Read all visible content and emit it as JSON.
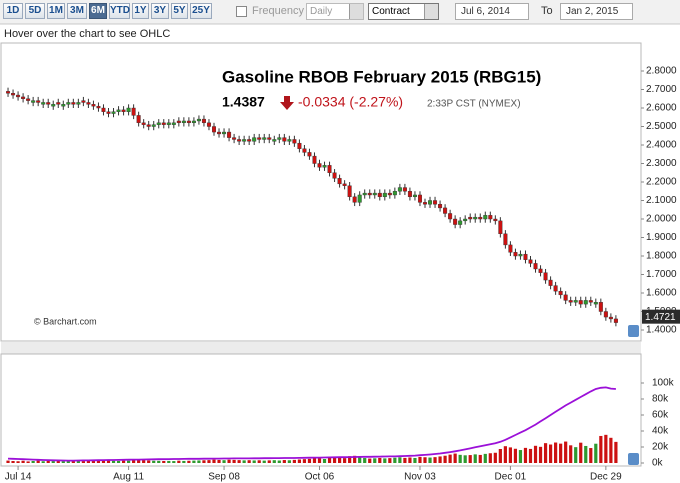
{
  "toolbar": {
    "ranges": [
      "1D",
      "5D",
      "1M",
      "3M",
      "6M",
      "YTD",
      "1Y",
      "3Y",
      "5Y",
      "25Y"
    ],
    "active": "6M",
    "frequency_label": "Frequency",
    "frequency": "Daily",
    "contract": "Contract",
    "from": "Jul 6, 2014",
    "to_label": "To",
    "to": "Jan 2, 2015"
  },
  "hint": "Hover over the chart to see OHLC",
  "chart_data": {
    "type": "candlestick",
    "title": "Gasoline RBOB February 2015 (RBG15)",
    "last": 1.4387,
    "change": "-0.0334 (-2.27%)",
    "time": "2:33P CST (NYMEX)",
    "credit": "© Barchart.com",
    "price_badge": 1.4721,
    "up_color": "#2e9a2e",
    "down_color": "#cc1111",
    "grid": false,
    "xlim": [
      -1.2,
      125.2
    ],
    "xticks": [
      {
        "value": 2,
        "label": "Jul 14"
      },
      {
        "value": 24,
        "label": "Aug 11"
      },
      {
        "value": 43,
        "label": "Sep 08"
      },
      {
        "value": 62,
        "label": "Oct 06"
      },
      {
        "value": 82,
        "label": "Nov 03"
      },
      {
        "value": 100,
        "label": "Dec 01"
      },
      {
        "value": 119,
        "label": "Dec 29"
      }
    ],
    "ylim": [
      1.346,
      2.946
    ],
    "yticks": [
      {
        "value": 2.8,
        "label": "2.8000"
      },
      {
        "value": 2.7,
        "label": "2.7000"
      },
      {
        "value": 2.6,
        "label": "2.6000"
      },
      {
        "value": 2.5,
        "label": "2.5000"
      },
      {
        "value": 2.4,
        "label": "2.4000"
      },
      {
        "value": 2.3,
        "label": "2.3000"
      },
      {
        "value": 2.2,
        "label": "2.2000"
      },
      {
        "value": 2.1,
        "label": "2.1000"
      },
      {
        "value": 2.0,
        "label": "2.0000"
      },
      {
        "value": 1.9,
        "label": "1.9000"
      },
      {
        "value": 1.8,
        "label": "1.8000"
      },
      {
        "value": 1.7,
        "label": "1.7000"
      },
      {
        "value": 1.6,
        "label": "1.6000"
      },
      {
        "value": 1.5,
        "label": "1.5000"
      },
      {
        "value": 1.4,
        "label": "1.4000"
      }
    ],
    "open": [
      2.69,
      2.68,
      2.67,
      2.66,
      2.65,
      2.63,
      2.64,
      2.62,
      2.63,
      2.61,
      2.63,
      2.61,
      2.62,
      2.63,
      2.62,
      2.64,
      2.63,
      2.62,
      2.61,
      2.6,
      2.58,
      2.57,
      2.58,
      2.59,
      2.58,
      2.6,
      2.56,
      2.52,
      2.51,
      2.5,
      2.51,
      2.52,
      2.51,
      2.51,
      2.53,
      2.52,
      2.53,
      2.52,
      2.53,
      2.54,
      2.52,
      2.5,
      2.47,
      2.46,
      2.47,
      2.44,
      2.43,
      2.42,
      2.43,
      2.42,
      2.44,
      2.43,
      2.44,
      2.42,
      2.43,
      2.44,
      2.42,
      2.43,
      2.41,
      2.38,
      2.36,
      2.34,
      2.3,
      2.28,
      2.29,
      2.25,
      2.22,
      2.19,
      2.18,
      2.12,
      2.09,
      2.13,
      2.14,
      2.13,
      2.14,
      2.12,
      2.14,
      2.13,
      2.15,
      2.17,
      2.15,
      2.12,
      2.13,
      2.09,
      2.08,
      2.1,
      2.08,
      2.06,
      2.03,
      2.0,
      1.97,
      1.99,
      2.01,
      2.0,
      2.01,
      2.0,
      2.02,
      2.0,
      1.99,
      1.92,
      1.86,
      1.82,
      1.8,
      1.81,
      1.78,
      1.76,
      1.73,
      1.71,
      1.67,
      1.64,
      1.61,
      1.59,
      1.56,
      1.55,
      1.56,
      1.54,
      1.56,
      1.54,
      1.55,
      1.5,
      1.47,
      1.46
    ],
    "high": [
      2.71,
      2.7,
      2.69,
      2.68,
      2.67,
      2.66,
      2.66,
      2.65,
      2.65,
      2.64,
      2.65,
      2.64,
      2.65,
      2.65,
      2.65,
      2.66,
      2.65,
      2.64,
      2.63,
      2.62,
      2.6,
      2.6,
      2.61,
      2.61,
      2.62,
      2.62,
      2.58,
      2.54,
      2.53,
      2.53,
      2.54,
      2.54,
      2.54,
      2.54,
      2.55,
      2.55,
      2.55,
      2.55,
      2.56,
      2.56,
      2.54,
      2.52,
      2.49,
      2.49,
      2.49,
      2.46,
      2.45,
      2.45,
      2.45,
      2.46,
      2.46,
      2.46,
      2.46,
      2.45,
      2.46,
      2.46,
      2.45,
      2.45,
      2.43,
      2.4,
      2.38,
      2.36,
      2.32,
      2.31,
      2.31,
      2.27,
      2.24,
      2.21,
      2.2,
      2.14,
      2.15,
      2.16,
      2.16,
      2.16,
      2.16,
      2.16,
      2.16,
      2.17,
      2.19,
      2.19,
      2.17,
      2.15,
      2.15,
      2.11,
      2.12,
      2.12,
      2.1,
      2.08,
      2.05,
      2.02,
      2.01,
      2.02,
      2.03,
      2.03,
      2.03,
      2.04,
      2.04,
      2.02,
      2.01,
      1.94,
      1.88,
      1.84,
      1.83,
      1.83,
      1.8,
      1.78,
      1.75,
      1.73,
      1.69,
      1.66,
      1.63,
      1.61,
      1.58,
      1.58,
      1.58,
      1.58,
      1.58,
      1.57,
      1.57,
      1.52,
      1.49,
      1.48
    ],
    "low": [
      2.66,
      2.65,
      2.64,
      2.63,
      2.62,
      2.61,
      2.61,
      2.6,
      2.6,
      2.59,
      2.6,
      2.59,
      2.6,
      2.6,
      2.6,
      2.61,
      2.6,
      2.59,
      2.58,
      2.56,
      2.55,
      2.55,
      2.56,
      2.56,
      2.56,
      2.54,
      2.5,
      2.49,
      2.48,
      2.48,
      2.49,
      2.49,
      2.49,
      2.49,
      2.5,
      2.5,
      2.5,
      2.5,
      2.51,
      2.5,
      2.48,
      2.45,
      2.44,
      2.44,
      2.42,
      2.41,
      2.4,
      2.4,
      2.4,
      2.4,
      2.41,
      2.41,
      2.41,
      2.4,
      2.41,
      2.4,
      2.4,
      2.39,
      2.36,
      2.34,
      2.32,
      2.28,
      2.26,
      2.26,
      2.23,
      2.2,
      2.17,
      2.16,
      2.1,
      2.07,
      2.07,
      2.11,
      2.11,
      2.11,
      2.1,
      2.1,
      2.11,
      2.11,
      2.13,
      2.13,
      2.1,
      2.1,
      2.07,
      2.06,
      2.06,
      2.06,
      2.04,
      2.01,
      1.98,
      1.95,
      1.95,
      1.97,
      1.98,
      1.98,
      1.98,
      1.98,
      1.98,
      1.97,
      1.9,
      1.84,
      1.8,
      1.78,
      1.78,
      1.76,
      1.74,
      1.71,
      1.69,
      1.65,
      1.62,
      1.59,
      1.57,
      1.54,
      1.53,
      1.53,
      1.52,
      1.52,
      1.53,
      1.52,
      1.48,
      1.45,
      1.44,
      1.42
    ],
    "close": [
      2.68,
      2.67,
      2.66,
      2.65,
      2.64,
      2.64,
      2.63,
      2.63,
      2.62,
      2.62,
      2.62,
      2.62,
      2.63,
      2.62,
      2.63,
      2.63,
      2.62,
      2.61,
      2.6,
      2.58,
      2.57,
      2.58,
      2.59,
      2.58,
      2.6,
      2.56,
      2.52,
      2.51,
      2.5,
      2.51,
      2.52,
      2.51,
      2.52,
      2.52,
      2.52,
      2.53,
      2.52,
      2.53,
      2.54,
      2.52,
      2.5,
      2.47,
      2.46,
      2.47,
      2.44,
      2.43,
      2.42,
      2.43,
      2.42,
      2.44,
      2.43,
      2.44,
      2.43,
      2.43,
      2.44,
      2.42,
      2.43,
      2.41,
      2.38,
      2.36,
      2.34,
      2.3,
      2.28,
      2.29,
      2.25,
      2.22,
      2.19,
      2.18,
      2.12,
      2.09,
      2.13,
      2.14,
      2.13,
      2.14,
      2.12,
      2.14,
      2.13,
      2.15,
      2.17,
      2.15,
      2.12,
      2.13,
      2.09,
      2.08,
      2.1,
      2.08,
      2.06,
      2.03,
      2.0,
      1.97,
      1.99,
      2.0,
      2.0,
      2.01,
      2.0,
      2.02,
      2.0,
      1.99,
      1.92,
      1.86,
      1.82,
      1.8,
      1.81,
      1.78,
      1.76,
      1.73,
      1.71,
      1.67,
      1.64,
      1.61,
      1.59,
      1.56,
      1.55,
      1.56,
      1.54,
      1.56,
      1.55,
      1.55,
      1.5,
      1.47,
      1.46,
      1.44
    ],
    "volume": {
      "ylim": [
        0,
        135000
      ],
      "yticks": [
        {
          "value": 100000,
          "label": "100k"
        },
        {
          "value": 80000,
          "label": "80k"
        },
        {
          "value": 60000,
          "label": "60k"
        },
        {
          "value": 40000,
          "label": "40k"
        },
        {
          "value": 20000,
          "label": "20k"
        },
        {
          "value": 0,
          "label": "0k"
        }
      ],
      "values": [
        3000,
        2500,
        2200,
        2800,
        2000,
        2500,
        3000,
        2200,
        2600,
        2400,
        2800,
        2300,
        2500,
        2100,
        2700,
        2400,
        2600,
        3100,
        3300,
        3800,
        3500,
        2800,
        2600,
        3000,
        2900,
        4200,
        4800,
        3600,
        3200,
        2800,
        2700,
        2500,
        2600,
        2400,
        2900,
        2600,
        2800,
        3000,
        3200,
        3400,
        3600,
        4200,
        3800,
        3500,
        4100,
        3900,
        3600,
        3300,
        3500,
        3200,
        3400,
        3000,
        3300,
        3500,
        3100,
        3700,
        3400,
        3900,
        4400,
        4800,
        5200,
        6200,
        5800,
        5000,
        6400,
        6800,
        7200,
        6100,
        8500,
        9000,
        7800,
        6200,
        5600,
        5900,
        6300,
        5800,
        6100,
        6600,
        7100,
        6400,
        6900,
        6300,
        7600,
        7200,
        6800,
        7300,
        8200,
        9100,
        10500,
        11800,
        10200,
        9600,
        9900,
        10800,
        10100,
        11400,
        12200,
        12800,
        17500,
        21000,
        19500,
        17800,
        16200,
        18900,
        17600,
        21500,
        20200,
        24800,
        23100,
        25600,
        24200,
        26800,
        22100,
        19800,
        25400,
        21300,
        18700,
        24100,
        33800,
        35200,
        31500,
        26400
      ]
    },
    "open_interest": {
      "color": "#9b10d8",
      "values": [
        5500,
        5300,
        5000,
        4800,
        4500,
        4200,
        4000,
        3800,
        3600,
        3400,
        3200,
        3100,
        3000,
        3000,
        3100,
        3200,
        3300,
        3400,
        3500,
        3600,
        3700,
        3800,
        3900,
        4000,
        4100,
        4200,
        4300,
        4400,
        4500,
        4600,
        4700,
        4800,
        4900,
        5000,
        5000,
        5100,
        5200,
        5300,
        5300,
        5400,
        5400,
        5500,
        5500,
        5600,
        5600,
        5700,
        5700,
        5800,
        5800,
        5900,
        5900,
        6000,
        6000,
        6100,
        6100,
        6200,
        6200,
        6300,
        6400,
        6500,
        6600,
        6700,
        6800,
        6900,
        7000,
        7100,
        7200,
        7300,
        7400,
        7500,
        7600,
        7700,
        7800,
        7900,
        8000,
        8100,
        8200,
        8300,
        8500,
        8700,
        9000,
        9300,
        9700,
        10100,
        10600,
        11200,
        11900,
        12700,
        13600,
        14600,
        15800,
        17000,
        18300,
        19600,
        21000,
        22300,
        23500,
        24700,
        26500,
        29000,
        32000,
        35000,
        38000,
        41000,
        44500,
        48000,
        52000,
        56000,
        60000,
        64000,
        68000,
        72000,
        75500,
        79000,
        82500,
        86000,
        89500,
        92500,
        94000,
        94500,
        93000,
        92500
      ]
    }
  }
}
